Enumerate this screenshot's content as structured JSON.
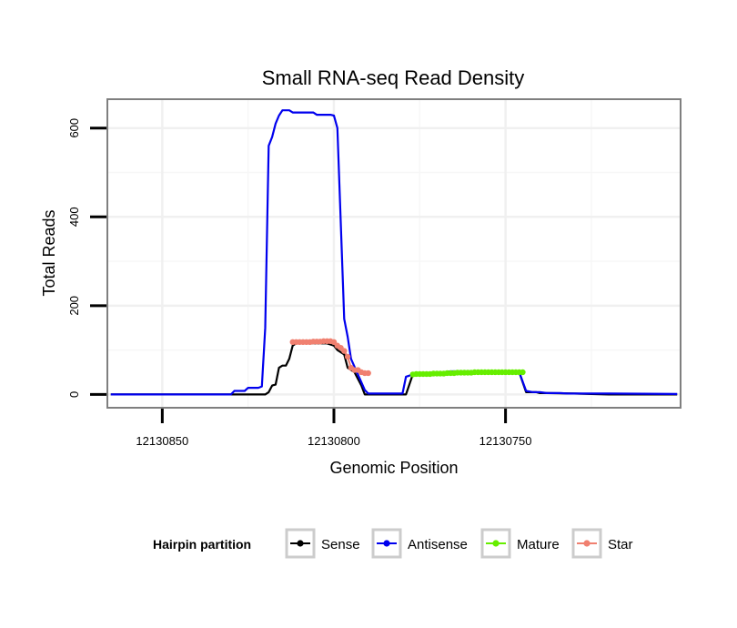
{
  "chart_data": {
    "type": "line",
    "title": "Small RNA-seq Read Density",
    "xlabel": "Genomic Position",
    "ylabel": "Total Reads",
    "x_reversed": true,
    "xlim": [
      12130866,
      12130699
    ],
    "ylim": [
      -30,
      665
    ],
    "x_ticks": [
      12130850,
      12130800,
      12130750
    ],
    "x_tick_labels": [
      "12130850",
      "12130800",
      "12130750"
    ],
    "y_ticks": [
      0,
      200,
      400,
      600
    ],
    "y_tick_labels": [
      "0",
      "200",
      "400",
      "600"
    ],
    "grid": true,
    "legend": {
      "title": "Hairpin partition",
      "placement": "bottom",
      "entries": [
        "Sense",
        "Antisense",
        "Mature",
        "Star"
      ]
    },
    "series": [
      {
        "name": "Sense",
        "color": "#000000",
        "markers": false,
        "x": [
          12130865,
          12130820,
          12130819,
          12130818,
          12130817,
          12130816,
          12130815,
          12130814,
          12130813,
          12130812,
          12130811,
          12130810,
          12130808,
          12130806,
          12130804,
          12130802,
          12130800,
          12130799,
          12130797,
          12130796,
          12130795,
          12130794,
          12130792,
          12130791,
          12130790,
          12130785,
          12130780,
          12130779,
          12130777,
          12130776,
          12130771,
          12130770,
          12130768,
          12130766,
          12130760,
          12130755,
          12130749,
          12130746,
          12130744,
          12130741,
          12130740,
          12130738,
          12130730,
          12130725,
          12130720,
          12130700
        ],
        "values": [
          0,
          0,
          5,
          20,
          22,
          60,
          65,
          65,
          80,
          110,
          115,
          115,
          115,
          115,
          115,
          115,
          110,
          100,
          90,
          60,
          55,
          50,
          20,
          0,
          0,
          0,
          0,
          0,
          45,
          45,
          45,
          45,
          50,
          50,
          50,
          50,
          50,
          50,
          5,
          5,
          3,
          3,
          2,
          1,
          0,
          0
        ]
      },
      {
        "name": "Antisense",
        "color": "#0000ee",
        "markers": false,
        "x": [
          12130865,
          12130830,
          12130829,
          12130826,
          12130825,
          12130822,
          12130821,
          12130820,
          12130819,
          12130818,
          12130817,
          12130816,
          12130815,
          12130814,
          12130813,
          12130812,
          12130811,
          12130810,
          12130806,
          12130805,
          12130801,
          12130800,
          12130799,
          12130797,
          12130796,
          12130795,
          12130791,
          12130790,
          12130785,
          12130780,
          12130779,
          12130777,
          12130776,
          12130771,
          12130770,
          12130768,
          12130766,
          12130760,
          12130755,
          12130749,
          12130746,
          12130744,
          12130742,
          12130741,
          12130740,
          12130738,
          12130734,
          12130732,
          12130720,
          12130700
        ],
        "values": [
          0,
          0,
          8,
          8,
          15,
          15,
          18,
          150,
          560,
          580,
          610,
          628,
          640,
          640,
          640,
          635,
          635,
          635,
          635,
          630,
          630,
          628,
          600,
          170,
          130,
          80,
          10,
          2,
          2,
          2,
          40,
          45,
          48,
          48,
          48,
          50,
          52,
          52,
          52,
          52,
          50,
          8,
          5,
          5,
          5,
          3,
          3,
          2,
          2,
          1
        ]
      },
      {
        "name": "Mature",
        "color": "#66ee00",
        "markers": true,
        "x": [
          12130777,
          12130776,
          12130775,
          12130774,
          12130773,
          12130772,
          12130771,
          12130770,
          12130769,
          12130768,
          12130767,
          12130766,
          12130765,
          12130764,
          12130763,
          12130762,
          12130761,
          12130760,
          12130759,
          12130758,
          12130757,
          12130756,
          12130755,
          12130754,
          12130753,
          12130752,
          12130751,
          12130750,
          12130749,
          12130748,
          12130747,
          12130746,
          12130745
        ],
        "values": [
          45,
          46,
          46,
          46,
          46,
          46,
          47,
          47,
          47,
          47,
          48,
          48,
          48,
          49,
          49,
          49,
          49,
          49,
          50,
          50,
          50,
          50,
          50,
          50,
          50,
          50,
          50,
          50,
          50,
          50,
          50,
          50,
          50
        ]
      },
      {
        "name": "Star",
        "color": "#f08070",
        "markers": true,
        "x": [
          12130812,
          12130811,
          12130810,
          12130809,
          12130808,
          12130807,
          12130806,
          12130805,
          12130804,
          12130803,
          12130802,
          12130801,
          12130800,
          12130799,
          12130798,
          12130797,
          12130796,
          12130795,
          12130794,
          12130793,
          12130792,
          12130791,
          12130790
        ],
        "values": [
          118,
          118,
          118,
          118,
          118,
          118,
          119,
          119,
          119,
          120,
          120,
          120,
          118,
          110,
          105,
          98,
          85,
          60,
          55,
          55,
          50,
          48,
          48
        ]
      }
    ]
  }
}
